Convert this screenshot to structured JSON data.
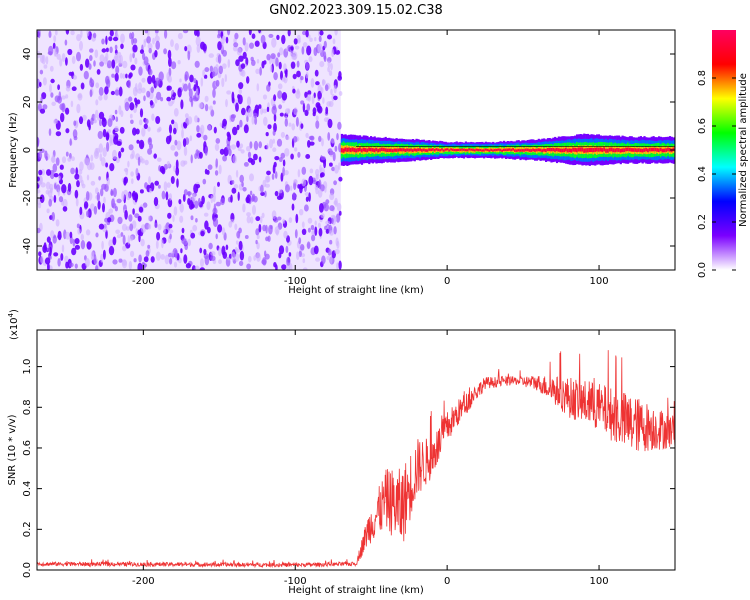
{
  "title": "GN02.2023.309.15.02.C38",
  "chart_data": [
    {
      "type": "heatmap",
      "xlabel": "Height of straight line (km)",
      "ylabel": "Frequency (Hz)",
      "xlim": [
        -270,
        150
      ],
      "ylim": [
        -50,
        50
      ],
      "xticks": [
        "-200",
        "-100",
        "0",
        "100"
      ],
      "xtick_values": [
        -200,
        -100,
        0,
        100
      ],
      "yticks": [
        "-40",
        "-20",
        "0",
        "20",
        "40"
      ],
      "ytick_values": [
        -40,
        -20,
        0,
        20,
        40
      ],
      "noise_region_x": [
        -270,
        -70
      ],
      "signal_track": [
        {
          "x": -70,
          "width_hz": 3
        },
        {
          "x": -50,
          "width_hz": 2.5
        },
        {
          "x": -20,
          "width_hz": 2
        },
        {
          "x": 0,
          "width_hz": 1.5
        },
        {
          "x": 30,
          "width_hz": 1.5
        },
        {
          "x": 60,
          "width_hz": 2
        },
        {
          "x": 90,
          "width_hz": 3
        },
        {
          "x": 120,
          "width_hz": 2.5
        },
        {
          "x": 150,
          "width_hz": 2.5
        }
      ],
      "colorbar": {
        "label": "Normalized spectral amplitude",
        "range": [
          0,
          1
        ],
        "ticks": [
          "0.0",
          "0.2",
          "0.4",
          "0.6",
          "0.8"
        ],
        "tick_values": [
          0,
          0.2,
          0.4,
          0.6,
          0.8
        ],
        "colors": [
          "#ffffff",
          "#7b00ff",
          "#0000ff",
          "#00ffff",
          "#00ff00",
          "#ffff00",
          "#ff0000",
          "#ff0060"
        ]
      }
    },
    {
      "type": "line",
      "xlabel": "Height of straight line (km)",
      "ylabel": "SNR (10 * v/v)",
      "scale_label": "(x10",
      "scale_exp": "4",
      "scale_close": ")",
      "xlim": [
        -270,
        150
      ],
      "ylim": [
        0,
        1.18
      ],
      "xticks": [
        "-200",
        "-100",
        "0",
        "100"
      ],
      "xtick_values": [
        -200,
        -100,
        0,
        100
      ],
      "yticks": [
        "0.0",
        "0.2",
        "0.4",
        "0.6",
        "0.8",
        "1.0"
      ],
      "ytick_values": [
        0,
        0.2,
        0.4,
        0.6,
        0.8,
        1.0
      ],
      "series": [
        {
          "color": "#ee3333",
          "envelope": [
            {
              "x": -270,
              "y": 0.03,
              "amp": 0.01
            },
            {
              "x": -100,
              "y": 0.025,
              "amp": 0.01
            },
            {
              "x": -60,
              "y": 0.03,
              "amp": 0.01
            },
            {
              "x": -52,
              "y": 0.2,
              "amp": 0.08
            },
            {
              "x": -40,
              "y": 0.35,
              "amp": 0.15
            },
            {
              "x": -30,
              "y": 0.3,
              "amp": 0.2
            },
            {
              "x": -20,
              "y": 0.5,
              "amp": 0.15
            },
            {
              "x": -10,
              "y": 0.55,
              "amp": 0.1
            },
            {
              "x": 0,
              "y": 0.7,
              "amp": 0.08
            },
            {
              "x": 10,
              "y": 0.8,
              "amp": 0.06
            },
            {
              "x": 25,
              "y": 0.92,
              "amp": 0.03
            },
            {
              "x": 45,
              "y": 0.93,
              "amp": 0.02
            },
            {
              "x": 60,
              "y": 0.92,
              "amp": 0.04
            },
            {
              "x": 80,
              "y": 0.85,
              "amp": 0.1
            },
            {
              "x": 100,
              "y": 0.8,
              "amp": 0.12
            },
            {
              "x": 120,
              "y": 0.72,
              "amp": 0.15
            },
            {
              "x": 150,
              "y": 0.68,
              "amp": 0.08
            }
          ]
        }
      ]
    }
  ]
}
